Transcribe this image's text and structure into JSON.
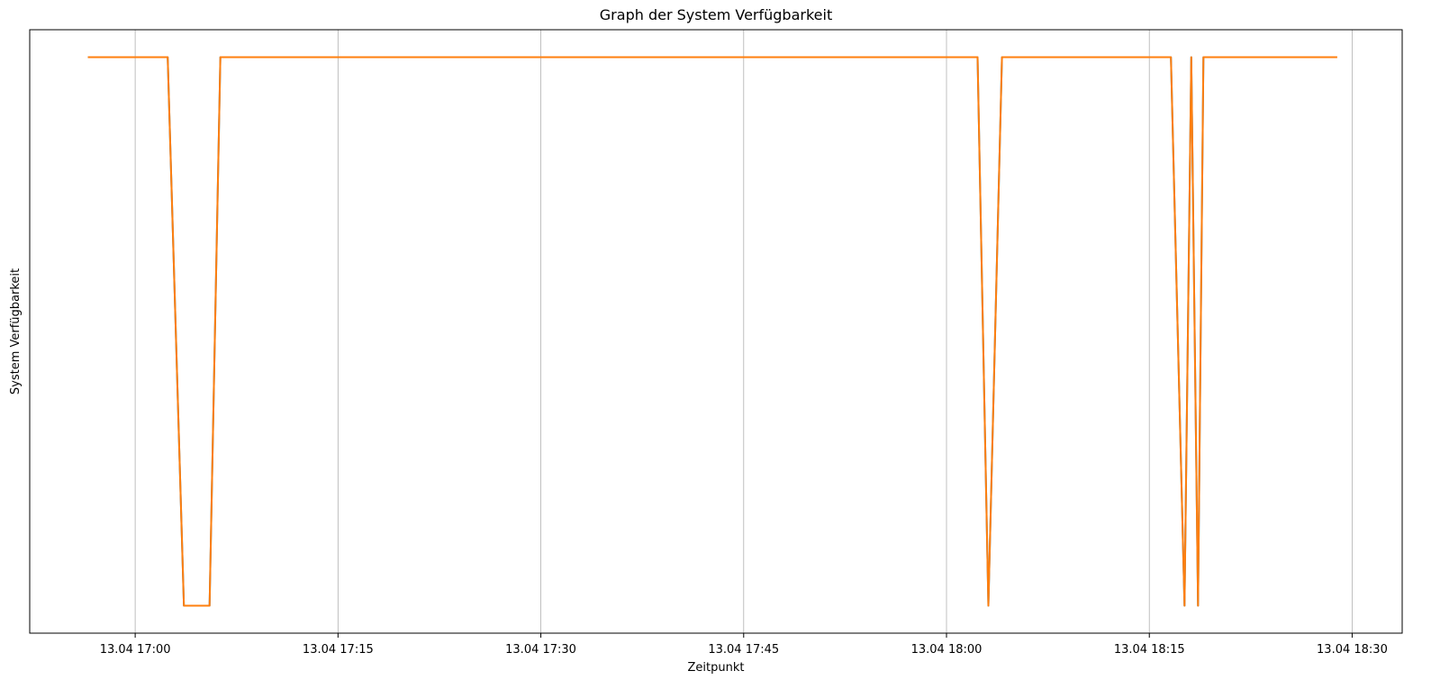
{
  "chart_data": {
    "type": "line",
    "title": "Graph der System Verfügbarkeit",
    "xlabel": "Zeitpunkt",
    "ylabel": "System Verfügbarkeit",
    "grid": "x",
    "x_unit": "minutes",
    "x_ticks": [
      {
        "value": 0,
        "label": "13.04 17:00"
      },
      {
        "value": 15,
        "label": "13.04 17:15"
      },
      {
        "value": 30,
        "label": "13.04 17:30"
      },
      {
        "value": 45,
        "label": "13.04 17:45"
      },
      {
        "value": 60,
        "label": "13.04 18:00"
      },
      {
        "value": 75,
        "label": "13.04 18:15"
      },
      {
        "value": 90,
        "label": "13.04 18:30"
      }
    ],
    "xlim": [
      -7.8,
      93.7
    ],
    "ylim": [
      -0.05,
      1.05
    ],
    "series": [
      {
        "color": "#1f77b4",
        "x": [
          -3.5,
          2.4,
          3.6,
          4.5,
          5.5,
          6.3,
          62.3,
          63.1,
          64.1,
          76.6,
          77.6,
          78.1,
          78.6,
          79.0,
          86.9
        ],
        "y": [
          1,
          1,
          0,
          0,
          0,
          1,
          1,
          0,
          1,
          1,
          0,
          1,
          0,
          1,
          1
        ]
      },
      {
        "color": "#ff7f0e",
        "x": [
          -3.5,
          2.4,
          3.6,
          4.5,
          5.5,
          6.3,
          62.3,
          63.1,
          64.1,
          76.6,
          77.6,
          78.1,
          78.6,
          79.0,
          88.9
        ],
        "y": [
          1,
          1,
          0,
          0,
          0,
          1,
          1,
          0,
          1,
          1,
          0,
          1,
          0,
          1,
          1
        ]
      }
    ]
  }
}
